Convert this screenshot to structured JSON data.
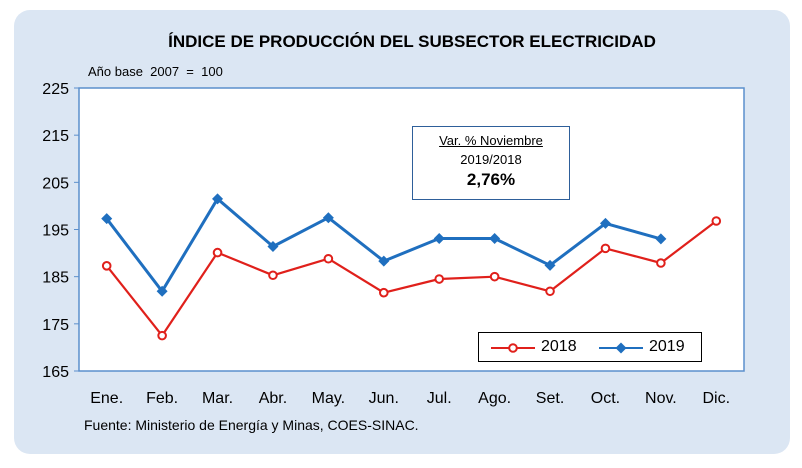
{
  "chart_data": {
    "type": "line",
    "title": "ÍNDICE DE PRODUCCIÓN DEL SUBSECTOR ELECTRICIDAD",
    "subtitle": "Año base  2007  =  100",
    "categories": [
      "Ene.",
      "Feb.",
      "Mar.",
      "Abr.",
      "May.",
      "Jun.",
      "Jul.",
      "Ago.",
      "Set.",
      "Oct.",
      "Nov.",
      "Dic."
    ],
    "series": [
      {
        "name": "2018",
        "color": "#e0201b",
        "marker": "circle-open",
        "values": [
          187.3,
          172.5,
          190.1,
          185.3,
          188.8,
          181.6,
          184.5,
          185.0,
          181.9,
          191.0,
          187.9,
          196.8
        ]
      },
      {
        "name": "2019",
        "color": "#1f6fbf",
        "marker": "diamond",
        "values": [
          197.3,
          181.9,
          201.5,
          191.4,
          197.5,
          188.3,
          193.1,
          193.1,
          187.4,
          196.3,
          193.0,
          null
        ]
      }
    ],
    "ylim": [
      165,
      225
    ],
    "yticks": [
      165,
      175,
      185,
      195,
      205,
      215,
      225
    ],
    "xlabel": "",
    "ylabel": "",
    "legend_position": "bottom-right",
    "annotation": {
      "line1": "Var. % Noviembre",
      "line2": "2019/2018",
      "value": "2,76%"
    },
    "source": "Fuente: Ministerio de Energía y Minas, COES-SINAC."
  }
}
